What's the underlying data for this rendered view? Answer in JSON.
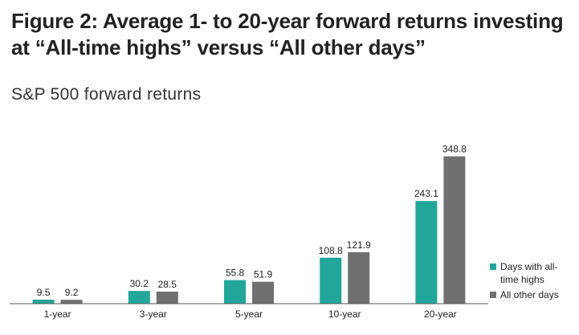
{
  "title": "Figure 2: Average 1- to 20-year forward returns investing at “All-time highs” versus “All other days”",
  "subtitle": "S&P 500 forward returns",
  "colors": {
    "series_0": "#23A69A",
    "series_1": "#707070",
    "axis": "#555555"
  },
  "chart_data": {
    "type": "bar",
    "title": "Figure 2: Average 1- to 20-year forward returns investing at “All-time highs” versus “All other days”",
    "subtitle": "S&P 500 forward returns",
    "categories": [
      "1-year",
      "3-year",
      "5-year",
      "10-year",
      "20-year"
    ],
    "series": [
      {
        "name": "Days with all-time highs",
        "values": [
          9.5,
          30.2,
          55.8,
          108.8,
          243.1
        ]
      },
      {
        "name": "All other days",
        "values": [
          9.2,
          28.5,
          51.9,
          121.9,
          348.8
        ]
      }
    ],
    "xlabel": "",
    "ylabel": "",
    "ylim": [
      0,
      350
    ],
    "grid": false,
    "legend": "right",
    "data_labels": true
  }
}
